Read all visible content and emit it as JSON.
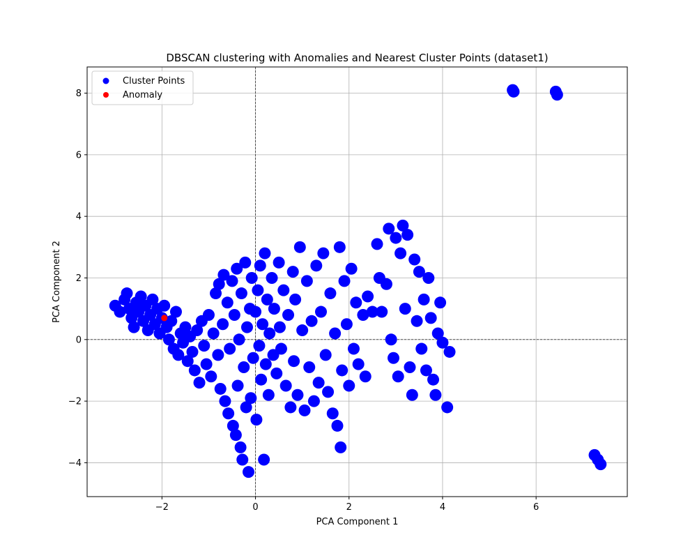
{
  "chart_data": {
    "type": "scatter",
    "title": "DBSCAN clustering with Anomalies and Nearest Cluster Points (dataset1)",
    "xlabel": "PCA Component 1",
    "ylabel": "PCA Component 2",
    "xlim": [
      -3.6,
      7.95
    ],
    "ylim": [
      -5.1,
      8.85
    ],
    "xticks": [
      -2,
      0,
      2,
      4,
      6
    ],
    "yticks": [
      -4,
      -2,
      0,
      2,
      4,
      6,
      8
    ],
    "xtick_labels": [
      "−2",
      "0",
      "2",
      "4",
      "6"
    ],
    "ytick_labels": [
      "−4",
      "−2",
      "0",
      "2",
      "4",
      "6",
      "8"
    ],
    "grid": true,
    "reference_lines": {
      "x": 0,
      "y": 0,
      "style": "dashed"
    },
    "legend": {
      "position": "top-left"
    },
    "series": [
      {
        "name": "Cluster Points",
        "color": "#0000ff",
        "points": [
          [
            -3.0,
            1.1
          ],
          [
            -2.9,
            0.9
          ],
          [
            -2.8,
            1.3
          ],
          [
            -2.75,
            1.5
          ],
          [
            -2.7,
            1.0
          ],
          [
            -2.65,
            0.7
          ],
          [
            -2.6,
            0.4
          ],
          [
            -2.55,
            1.2
          ],
          [
            -2.5,
            0.9
          ],
          [
            -2.45,
            1.4
          ],
          [
            -2.4,
            0.6
          ],
          [
            -2.35,
            1.1
          ],
          [
            -2.3,
            0.3
          ],
          [
            -2.25,
            0.8
          ],
          [
            -2.2,
            1.3
          ],
          [
            -2.15,
            0.5
          ],
          [
            -2.1,
            1.0
          ],
          [
            -2.05,
            0.2
          ],
          [
            -2.0,
            0.7
          ],
          [
            -1.95,
            1.1
          ],
          [
            -1.9,
            0.4
          ],
          [
            -1.85,
            0.0
          ],
          [
            -1.8,
            0.6
          ],
          [
            -1.75,
            -0.3
          ],
          [
            -1.7,
            0.9
          ],
          [
            -1.65,
            -0.5
          ],
          [
            -1.6,
            0.2
          ],
          [
            -1.55,
            -0.1
          ],
          [
            -1.5,
            0.4
          ],
          [
            -1.45,
            -0.7
          ],
          [
            -1.4,
            0.1
          ],
          [
            -1.35,
            -0.4
          ],
          [
            -1.3,
            -1.0
          ],
          [
            -1.25,
            0.3
          ],
          [
            -1.2,
            -1.4
          ],
          [
            -1.15,
            0.6
          ],
          [
            -1.1,
            -0.2
          ],
          [
            -1.05,
            -0.8
          ],
          [
            -1.0,
            0.8
          ],
          [
            -0.95,
            -1.2
          ],
          [
            -0.9,
            0.2
          ],
          [
            -0.85,
            1.5
          ],
          [
            -0.8,
            -0.5
          ],
          [
            -0.78,
            1.8
          ],
          [
            -0.75,
            -1.6
          ],
          [
            -0.7,
            0.5
          ],
          [
            -0.68,
            2.1
          ],
          [
            -0.65,
            -2.0
          ],
          [
            -0.6,
            1.2
          ],
          [
            -0.58,
            -2.4
          ],
          [
            -0.55,
            -0.3
          ],
          [
            -0.5,
            1.9
          ],
          [
            -0.48,
            -2.8
          ],
          [
            -0.45,
            0.8
          ],
          [
            -0.42,
            -3.1
          ],
          [
            -0.4,
            2.3
          ],
          [
            -0.38,
            -1.5
          ],
          [
            -0.35,
            0.0
          ],
          [
            -0.32,
            -3.5
          ],
          [
            -0.3,
            1.5
          ],
          [
            -0.28,
            -3.9
          ],
          [
            -0.25,
            -0.9
          ],
          [
            -0.22,
            2.5
          ],
          [
            -0.2,
            -2.2
          ],
          [
            -0.18,
            0.4
          ],
          [
            -0.15,
            -4.3
          ],
          [
            -0.12,
            1.0
          ],
          [
            -0.1,
            -1.9
          ],
          [
            -0.08,
            2.0
          ],
          [
            -0.05,
            -0.6
          ],
          [
            0.0,
            0.9
          ],
          [
            0.02,
            -2.6
          ],
          [
            0.05,
            1.6
          ],
          [
            0.08,
            -0.2
          ],
          [
            0.1,
            2.4
          ],
          [
            0.12,
            -1.3
          ],
          [
            0.15,
            0.5
          ],
          [
            0.18,
            -3.9
          ],
          [
            0.2,
            2.8
          ],
          [
            0.22,
            -0.8
          ],
          [
            0.25,
            1.3
          ],
          [
            0.28,
            -1.8
          ],
          [
            0.3,
            0.2
          ],
          [
            0.35,
            2.0
          ],
          [
            0.38,
            -0.5
          ],
          [
            0.4,
            1.0
          ],
          [
            0.45,
            -1.1
          ],
          [
            0.5,
            2.5
          ],
          [
            0.52,
            0.4
          ],
          [
            0.55,
            -0.3
          ],
          [
            0.6,
            1.6
          ],
          [
            0.65,
            -1.5
          ],
          [
            0.7,
            0.8
          ],
          [
            0.75,
            -2.2
          ],
          [
            0.8,
            2.2
          ],
          [
            0.82,
            -0.7
          ],
          [
            0.85,
            1.3
          ],
          [
            0.9,
            -1.8
          ],
          [
            0.95,
            3.0
          ],
          [
            1.0,
            0.3
          ],
          [
            1.05,
            -2.3
          ],
          [
            1.1,
            1.9
          ],
          [
            1.15,
            -0.9
          ],
          [
            1.2,
            0.6
          ],
          [
            1.25,
            -2.0
          ],
          [
            1.3,
            2.4
          ],
          [
            1.35,
            -1.4
          ],
          [
            1.4,
            0.9
          ],
          [
            1.45,
            2.8
          ],
          [
            1.5,
            -0.5
          ],
          [
            1.55,
            -1.7
          ],
          [
            1.6,
            1.5
          ],
          [
            1.65,
            -2.4
          ],
          [
            1.7,
            0.2
          ],
          [
            1.75,
            -2.8
          ],
          [
            1.8,
            3.0
          ],
          [
            1.82,
            -3.5
          ],
          [
            1.85,
            -1.0
          ],
          [
            1.9,
            1.9
          ],
          [
            1.95,
            0.5
          ],
          [
            2.0,
            -1.5
          ],
          [
            2.05,
            2.3
          ],
          [
            2.1,
            -0.3
          ],
          [
            2.15,
            1.2
          ],
          [
            2.2,
            -0.8
          ],
          [
            2.3,
            0.8
          ],
          [
            2.35,
            -1.2
          ],
          [
            2.4,
            1.4
          ],
          [
            2.5,
            0.9
          ],
          [
            2.6,
            3.1
          ],
          [
            2.65,
            2.0
          ],
          [
            2.7,
            0.9
          ],
          [
            2.8,
            1.8
          ],
          [
            2.85,
            3.6
          ],
          [
            2.9,
            0.0
          ],
          [
            2.95,
            -0.6
          ],
          [
            3.0,
            3.3
          ],
          [
            3.05,
            -1.2
          ],
          [
            3.1,
            2.8
          ],
          [
            3.15,
            3.7
          ],
          [
            3.2,
            1.0
          ],
          [
            3.25,
            3.4
          ],
          [
            3.3,
            -0.9
          ],
          [
            3.35,
            -1.8
          ],
          [
            3.4,
            2.6
          ],
          [
            3.45,
            0.6
          ],
          [
            3.5,
            2.2
          ],
          [
            3.55,
            -0.3
          ],
          [
            3.6,
            1.3
          ],
          [
            3.65,
            -1.0
          ],
          [
            3.7,
            2.0
          ],
          [
            3.75,
            0.7
          ],
          [
            3.8,
            -1.3
          ],
          [
            3.85,
            -1.8
          ],
          [
            3.9,
            0.2
          ],
          [
            3.95,
            1.2
          ],
          [
            4.0,
            -0.1
          ],
          [
            4.1,
            -2.2
          ],
          [
            4.15,
            -0.4
          ],
          [
            5.5,
            8.1
          ],
          [
            5.52,
            8.05
          ],
          [
            6.42,
            8.05
          ],
          [
            6.45,
            7.95
          ],
          [
            7.25,
            -3.75
          ],
          [
            7.32,
            -3.9
          ],
          [
            7.38,
            -4.05
          ]
        ]
      },
      {
        "name": "Anomaly",
        "color": "#ff0000",
        "points": [
          [
            -1.95,
            0.7
          ]
        ]
      }
    ]
  }
}
